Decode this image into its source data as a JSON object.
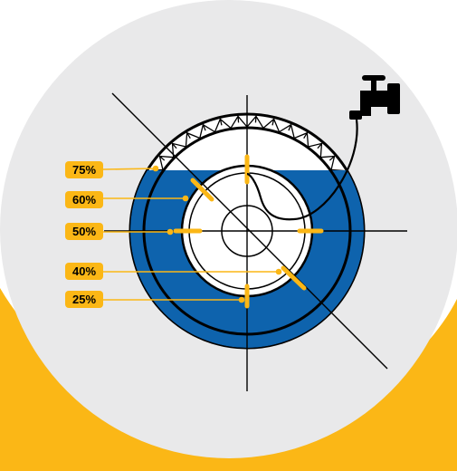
{
  "diagram": {
    "fill_levels": [
      {
        "label": "75%",
        "value": 75
      },
      {
        "label": "60%",
        "value": 60
      },
      {
        "label": "50%",
        "value": 50
      },
      {
        "label": "40%",
        "value": 40
      },
      {
        "label": "25%",
        "value": 25
      }
    ],
    "water_level_shown": 75,
    "icons": [
      "tire-icon",
      "water-faucet-icon",
      "valve-stem-icon"
    ],
    "colors": {
      "background_circle": "#e9e9ea",
      "yellow": "#fbb716",
      "water": "#0e63ad",
      "tire_outline": "#000000",
      "label_text": "#000000"
    }
  }
}
